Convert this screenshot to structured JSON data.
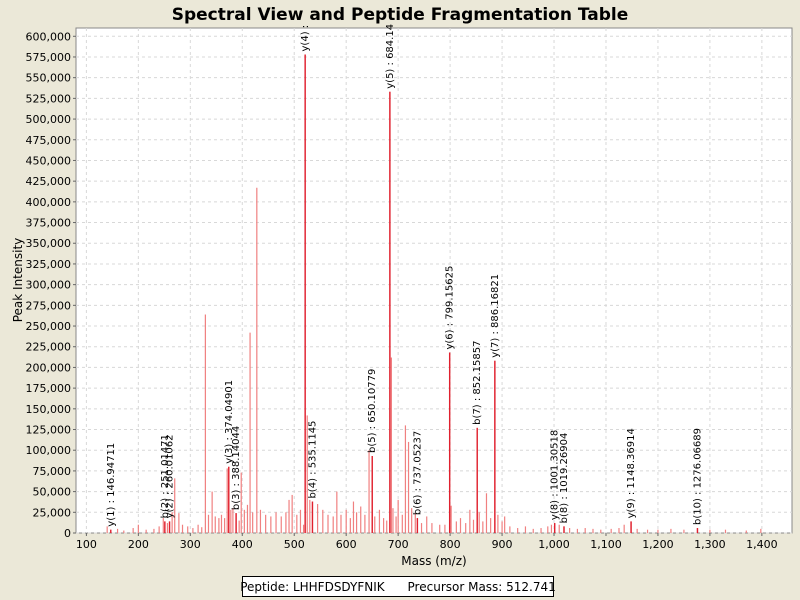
{
  "chart_data": {
    "type": "bar",
    "title": "Spectral View and Peptide Fragmentation Table",
    "xlabel": "Mass (m/z)",
    "ylabel": "Peak Intensity",
    "xlim": [
      80,
      1458
    ],
    "ylim": [
      0,
      610000
    ],
    "x_ticks": [
      100,
      200,
      300,
      400,
      500,
      600,
      700,
      800,
      900,
      1000,
      1100,
      1200,
      1300,
      1400
    ],
    "x_tick_labels": [
      "100",
      "200",
      "300",
      "400",
      "500",
      "600",
      "700",
      "800",
      "900",
      "1,000",
      "1,100",
      "1,200",
      "1,300",
      "1,400"
    ],
    "y_ticks": [
      0,
      25000,
      50000,
      75000,
      100000,
      125000,
      150000,
      175000,
      200000,
      225000,
      250000,
      275000,
      300000,
      325000,
      350000,
      375000,
      400000,
      425000,
      450000,
      475000,
      500000,
      525000,
      550000,
      575000,
      600000
    ],
    "y_tick_labels": [
      "0",
      "25,000",
      "50,000",
      "75,000",
      "100,000",
      "125,000",
      "150,000",
      "175,000",
      "200,000",
      "225,000",
      "250,000",
      "275,000",
      "300,000",
      "325,000",
      "350,000",
      "375,000",
      "400,000",
      "425,000",
      "450,000",
      "475,000",
      "500,000",
      "525,000",
      "550,000",
      "575,000",
      "600,000"
    ],
    "grid": true,
    "bar_color": "#f08080",
    "annotated_color": "#e0202e",
    "peaks": [
      [
        140,
        8000
      ],
      [
        147,
        4000
      ],
      [
        160,
        5000
      ],
      [
        172,
        3000
      ],
      [
        190,
        6000
      ],
      [
        200,
        10000
      ],
      [
        215,
        4000
      ],
      [
        230,
        5000
      ],
      [
        240,
        8000
      ],
      [
        248,
        18000
      ],
      [
        251,
        14000
      ],
      [
        256,
        12000
      ],
      [
        260,
        14000
      ],
      [
        265,
        25000
      ],
      [
        270,
        66000
      ],
      [
        278,
        24000
      ],
      [
        285,
        10000
      ],
      [
        295,
        8000
      ],
      [
        305,
        6000
      ],
      [
        315,
        10000
      ],
      [
        322,
        7000
      ],
      [
        329,
        264000
      ],
      [
        335,
        22000
      ],
      [
        342,
        50000
      ],
      [
        348,
        20000
      ],
      [
        355,
        18000
      ],
      [
        360,
        22000
      ],
      [
        366,
        18000
      ],
      [
        371,
        78000
      ],
      [
        374,
        80000
      ],
      [
        378,
        28000
      ],
      [
        382,
        30000
      ],
      [
        388,
        24000
      ],
      [
        394,
        15000
      ],
      [
        398,
        73000
      ],
      [
        404,
        28000
      ],
      [
        410,
        34000
      ],
      [
        415,
        242000
      ],
      [
        420,
        25000
      ],
      [
        428,
        417000
      ],
      [
        435,
        28000
      ],
      [
        445,
        22000
      ],
      [
        455,
        20000
      ],
      [
        465,
        25000
      ],
      [
        475,
        20000
      ],
      [
        484,
        25000
      ],
      [
        490,
        40000
      ],
      [
        496,
        46000
      ],
      [
        505,
        22000
      ],
      [
        512,
        28000
      ],
      [
        518,
        10000
      ],
      [
        521,
        578000
      ],
      [
        525,
        142000
      ],
      [
        530,
        40000
      ],
      [
        535,
        38000
      ],
      [
        545,
        35000
      ],
      [
        555,
        28000
      ],
      [
        565,
        22000
      ],
      [
        575,
        20000
      ],
      [
        582,
        50000
      ],
      [
        590,
        22000
      ],
      [
        600,
        28000
      ],
      [
        608,
        18000
      ],
      [
        614,
        38000
      ],
      [
        620,
        25000
      ],
      [
        628,
        32000
      ],
      [
        636,
        22000
      ],
      [
        644,
        100000
      ],
      [
        650,
        93000
      ],
      [
        655,
        20000
      ],
      [
        664,
        28000
      ],
      [
        672,
        18000
      ],
      [
        678,
        15000
      ],
      [
        684,
        533000
      ],
      [
        687,
        212000
      ],
      [
        690,
        30000
      ],
      [
        696,
        20000
      ],
      [
        700,
        40000
      ],
      [
        708,
        22000
      ],
      [
        714,
        130000
      ],
      [
        720,
        110000
      ],
      [
        726,
        30000
      ],
      [
        733,
        24000
      ],
      [
        737,
        18000
      ],
      [
        745,
        12000
      ],
      [
        755,
        20000
      ],
      [
        765,
        12000
      ],
      [
        780,
        10000
      ],
      [
        790,
        10000
      ],
      [
        799,
        218000
      ],
      [
        802,
        33000
      ],
      [
        812,
        14000
      ],
      [
        820,
        18000
      ],
      [
        830,
        12000
      ],
      [
        838,
        28000
      ],
      [
        845,
        16000
      ],
      [
        852,
        127000
      ],
      [
        856,
        25000
      ],
      [
        863,
        14000
      ],
      [
        870,
        48000
      ],
      [
        878,
        18000
      ],
      [
        886,
        208000
      ],
      [
        892,
        22000
      ],
      [
        900,
        14000
      ],
      [
        905,
        20000
      ],
      [
        915,
        8000
      ],
      [
        930,
        6000
      ],
      [
        945,
        8000
      ],
      [
        960,
        5000
      ],
      [
        975,
        6000
      ],
      [
        988,
        8000
      ],
      [
        995,
        10000
      ],
      [
        1001,
        12000
      ],
      [
        1010,
        10000
      ],
      [
        1019,
        8000
      ],
      [
        1030,
        6000
      ],
      [
        1045,
        5000
      ],
      [
        1060,
        6000
      ],
      [
        1075,
        5000
      ],
      [
        1090,
        4000
      ],
      [
        1110,
        5000
      ],
      [
        1125,
        6000
      ],
      [
        1135,
        10000
      ],
      [
        1148,
        14000
      ],
      [
        1160,
        5000
      ],
      [
        1180,
        4000
      ],
      [
        1200,
        4000
      ],
      [
        1225,
        5000
      ],
      [
        1250,
        4000
      ],
      [
        1276,
        6000
      ],
      [
        1300,
        4000
      ],
      [
        1330,
        4000
      ],
      [
        1370,
        3000
      ],
      [
        1398,
        5000
      ]
    ],
    "annotations": [
      {
        "label": "y(1) : 146.94711",
        "x": 146.94711,
        "y": 4000
      },
      {
        "label": "y(2) : 260.01062",
        "x": 260.01062,
        "y": 14000
      },
      {
        "label": "b(2) : 251.01471",
        "x": 251.01471,
        "y": 14000
      },
      {
        "label": "y(3) : 374.04901",
        "x": 374.04901,
        "y": 80000
      },
      {
        "label": "b(3) : 388.14044",
        "x": 388.14044,
        "y": 24000
      },
      {
        "label": "y(4) :",
        "x": 521.0,
        "y": 578000
      },
      {
        "label": "b(4) : 535.1145",
        "x": 535.1145,
        "y": 38000
      },
      {
        "label": "b(5) : 650.10779",
        "x": 650.10779,
        "y": 93000
      },
      {
        "label": "y(5) : 684.14",
        "x": 684.14,
        "y": 533000
      },
      {
        "label": "b(6) : 737.05237",
        "x": 737.05237,
        "y": 18000
      },
      {
        "label": "y(6) : 799.15625",
        "x": 799.15625,
        "y": 218000
      },
      {
        "label": "b(7) : 852.15857",
        "x": 852.15857,
        "y": 127000
      },
      {
        "label": "y(7) : 886.16821",
        "x": 886.16821,
        "y": 208000
      },
      {
        "label": "y(8) : 1001.30518",
        "x": 1001.30518,
        "y": 12000
      },
      {
        "label": "b(8) : 1019.26904",
        "x": 1019.26904,
        "y": 8000
      },
      {
        "label": "y(9) : 1148.36914",
        "x": 1148.36914,
        "y": 14000
      },
      {
        "label": "b(10) : 1276.06689",
        "x": 1276.06689,
        "y": 6000
      }
    ]
  },
  "info": {
    "peptide": "Peptide: LHHFDSDYFNIK",
    "precursor": "Precursor Mass: 512.741"
  }
}
